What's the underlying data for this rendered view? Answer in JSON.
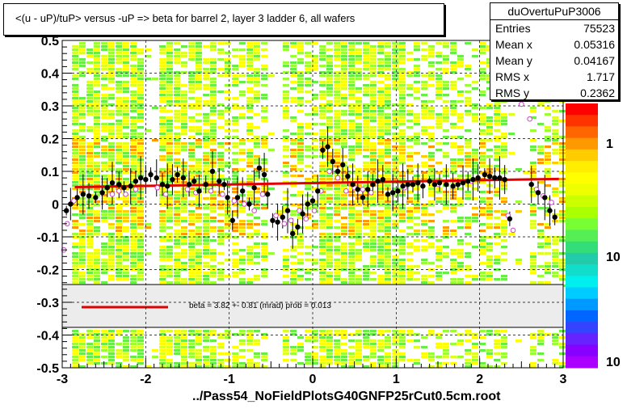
{
  "title": "<(u - uP)/tuP> versus  -uP => beta for barrel 2, layer 3 ladder 6, all wafers",
  "stats": {
    "name": "duOvertuPuP3006",
    "rows": [
      {
        "label": "Entries",
        "value": "75523"
      },
      {
        "label": "Mean x",
        "value": "0.05316"
      },
      {
        "label": "Mean y",
        "value": "0.04167"
      },
      {
        "label": "RMS x",
        "value": "1.717"
      },
      {
        "label": "RMS y",
        "value": "0.2362"
      }
    ]
  },
  "x_title": "../Pass54_NoFieldPlotsG40GNFP25rCut0.5cm.root",
  "fit_label": "beta =    3.82 +-  0.81 (mrad) prob = 0.013",
  "palette_labels": [
    "1",
    "10",
    "10"
  ],
  "colors": {
    "fit": "#e00000",
    "black_points": "#000000",
    "open_points": "#cc44cc"
  },
  "chart_data": {
    "type": "scatter",
    "xlim": [
      -3,
      3
    ],
    "ylim": [
      -0.5,
      0.5
    ],
    "xticks": [
      "-3",
      "-2",
      "-1",
      "0",
      "1",
      "2",
      "3"
    ],
    "yticks": [
      "-0.5",
      "-0.4",
      "-0.3",
      "-0.2",
      "-0.1",
      "0",
      "0.1",
      "0.2",
      "0.3",
      "0.4",
      "0.5"
    ],
    "grid": true,
    "fit_line": {
      "x": [
        -2.85,
        2.95
      ],
      "y": [
        0.052,
        0.077
      ]
    },
    "series": [
      {
        "marker": "filled-circle",
        "points": [
          [
            -2.95,
            -0.02
          ],
          [
            -2.9,
            0.0
          ],
          [
            -2.82,
            0.02
          ],
          [
            -2.75,
            0.03
          ],
          [
            -2.68,
            0.025
          ],
          [
            -2.6,
            0.02
          ],
          [
            -2.52,
            0.035
          ],
          [
            -2.46,
            0.05
          ],
          [
            -2.4,
            0.065
          ],
          [
            -2.32,
            0.06
          ],
          [
            -2.26,
            0.05
          ],
          [
            -2.18,
            0.055
          ],
          [
            -2.12,
            0.07
          ],
          [
            -2.06,
            0.08
          ],
          [
            -2.0,
            0.075
          ],
          [
            -1.94,
            0.09
          ],
          [
            -1.87,
            0.08
          ],
          [
            -1.8,
            0.06
          ],
          [
            -1.74,
            0.055
          ],
          [
            -1.68,
            0.075
          ],
          [
            -1.62,
            0.09
          ],
          [
            -1.55,
            0.08
          ],
          [
            -1.48,
            0.06
          ],
          [
            -1.42,
            0.07
          ],
          [
            -1.36,
            0.04
          ],
          [
            -1.28,
            0.06
          ],
          [
            -1.2,
            0.1
          ],
          [
            -1.12,
            0.07
          ],
          [
            -1.06,
            0.06
          ],
          [
            -1.02,
            0.02
          ],
          [
            -0.96,
            -0.05
          ],
          [
            -0.9,
            0.02
          ],
          [
            -0.84,
            0.04
          ],
          [
            -0.76,
            0.0
          ],
          [
            -0.7,
            0.05
          ],
          [
            -0.64,
            0.11
          ],
          [
            -0.58,
            0.09
          ],
          [
            -0.54,
            0.03
          ],
          [
            -0.48,
            -0.05
          ],
          [
            -0.42,
            -0.055
          ],
          [
            -0.36,
            -0.04
          ],
          [
            -0.3,
            -0.02
          ],
          [
            -0.24,
            -0.09
          ],
          [
            -0.18,
            -0.07
          ],
          [
            -0.12,
            -0.03
          ],
          [
            -0.06,
            0.0
          ],
          [
            0.0,
            0.01
          ],
          [
            0.06,
            0.04
          ],
          [
            0.12,
            0.165
          ],
          [
            0.18,
            0.175
          ],
          [
            0.24,
            0.13
          ],
          [
            0.3,
            0.1
          ],
          [
            0.36,
            0.12
          ],
          [
            0.42,
            0.085
          ],
          [
            0.48,
            0.06
          ],
          [
            0.54,
            0.045
          ],
          [
            0.6,
            0.02
          ],
          [
            0.66,
            0.045
          ],
          [
            0.72,
            0.06
          ],
          [
            0.78,
            0.07
          ],
          [
            0.84,
            0.075
          ],
          [
            0.9,
            0.03
          ],
          [
            0.96,
            0.035
          ],
          [
            1.02,
            0.04
          ],
          [
            1.08,
            0.055
          ],
          [
            1.14,
            0.06
          ],
          [
            1.2,
            0.06
          ],
          [
            1.26,
            0.065
          ],
          [
            1.32,
            0.055
          ],
          [
            1.4,
            0.07
          ],
          [
            1.46,
            0.06
          ],
          [
            1.52,
            0.065
          ],
          [
            1.6,
            0.06
          ],
          [
            1.68,
            0.055
          ],
          [
            1.74,
            0.06
          ],
          [
            1.8,
            0.065
          ],
          [
            1.86,
            0.07
          ],
          [
            1.92,
            0.075
          ],
          [
            1.98,
            0.08
          ],
          [
            2.06,
            0.09
          ],
          [
            2.12,
            0.085
          ],
          [
            2.18,
            0.08
          ],
          [
            2.24,
            0.08
          ],
          [
            2.3,
            0.075
          ],
          [
            2.36,
            -0.045
          ],
          [
            2.62,
            0.06
          ],
          [
            2.7,
            0.035
          ],
          [
            2.78,
            0.02
          ],
          [
            2.84,
            -0.02
          ],
          [
            2.9,
            -0.04
          ]
        ]
      },
      {
        "marker": "open-circle",
        "points": [
          [
            -2.98,
            -0.14
          ],
          [
            -2.94,
            -0.06
          ],
          [
            -2.86,
            0.01
          ],
          [
            -2.4,
            0.03
          ],
          [
            -2.32,
            0.04
          ],
          [
            -2.24,
            0.03
          ],
          [
            -2.12,
            0.045
          ],
          [
            -1.86,
            0.05
          ],
          [
            -1.76,
            0.03
          ],
          [
            -1.5,
            0.045
          ],
          [
            -1.4,
            0.035
          ],
          [
            -1.22,
            0.04
          ],
          [
            -1.08,
            0.03
          ],
          [
            -0.94,
            0.01
          ],
          [
            -0.82,
            0.0
          ],
          [
            -0.7,
            -0.02
          ],
          [
            -0.6,
            0.03
          ],
          [
            -0.44,
            -0.035
          ],
          [
            -0.34,
            -0.06
          ],
          [
            -0.26,
            -0.05
          ],
          [
            -0.16,
            -0.02
          ],
          [
            -0.08,
            -0.045
          ],
          [
            0.02,
            -0.02
          ],
          [
            0.1,
            0.04
          ],
          [
            0.2,
            0.1
          ],
          [
            0.3,
            0.08
          ],
          [
            0.4,
            0.04
          ],
          [
            0.5,
            0.05
          ],
          [
            0.6,
            0.045
          ],
          [
            0.7,
            0.035
          ],
          [
            1.1,
            0.05
          ],
          [
            1.5,
            0.06
          ],
          [
            1.9,
            0.07
          ],
          [
            2.34,
            -0.035
          ],
          [
            2.4,
            -0.08
          ],
          [
            2.5,
            0.305
          ],
          [
            2.6,
            0.26
          ],
          [
            2.68,
            0.045
          ],
          [
            2.76,
            0.025
          ],
          [
            2.86,
            0.005
          ]
        ]
      }
    ]
  }
}
